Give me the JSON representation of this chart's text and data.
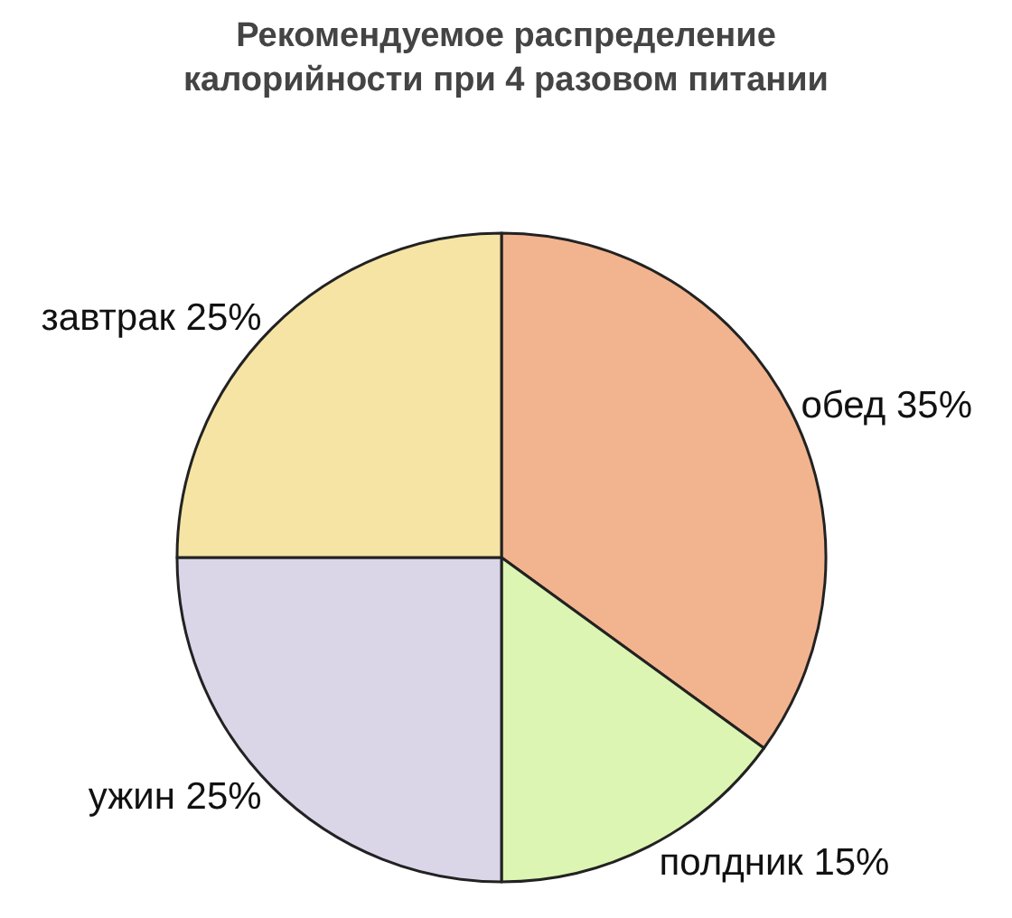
{
  "chart_data": {
    "type": "pie",
    "title": "Рекомендуемое распределение\nкалорийности при 4 разовом питании",
    "categories": [
      "обед",
      "полдник",
      "ужин",
      "завтрак"
    ],
    "values": [
      35,
      15,
      25,
      25
    ],
    "value_labels": [
      "35%",
      "15%",
      "25%",
      "25%"
    ],
    "colors": [
      "#f2b48e",
      "#dcf5b2",
      "#dbd5e8",
      "#f6e4a4"
    ],
    "legend": false
  }
}
